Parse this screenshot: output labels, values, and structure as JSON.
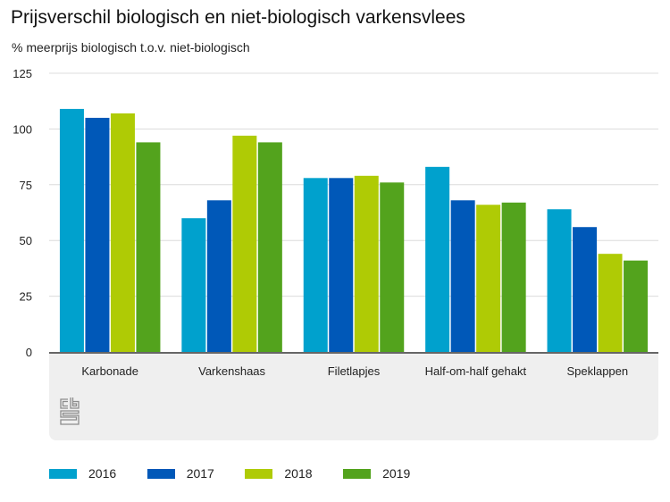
{
  "chart_data": {
    "type": "bar",
    "title": "Prijsverschil biologisch en niet-biologisch varkensvlees",
    "subtitle": "% meerprijs biologisch t.o.v. niet-biologisch",
    "xlabel": "",
    "ylabel": "% meerprijs biologisch t.o.v. niet-biologisch",
    "ylim": [
      0,
      125
    ],
    "yticks": [
      0,
      25,
      50,
      75,
      100,
      125
    ],
    "ytick_labels": [
      "0",
      "25",
      "50",
      "75",
      "100",
      "125"
    ],
    "grid": true,
    "legend_position": "bottom",
    "categories": [
      "Karbonade",
      "Varkenshaas",
      "Filetlapjes",
      "Half-om-half gehakt",
      "Speklappen"
    ],
    "series": [
      {
        "name": "2016",
        "color": "#00A1CD",
        "values": [
          109,
          60,
          78,
          83,
          64
        ]
      },
      {
        "name": "2017",
        "color": "#0058B8",
        "values": [
          105,
          68,
          78,
          68,
          56
        ]
      },
      {
        "name": "2018",
        "color": "#AFCB05",
        "values": [
          107,
          97,
          79,
          66,
          44
        ]
      },
      {
        "name": "2019",
        "color": "#53A31D",
        "values": [
          94,
          94,
          76,
          67,
          41
        ]
      }
    ]
  },
  "branding": {
    "logo": "cbs-logo-icon"
  }
}
